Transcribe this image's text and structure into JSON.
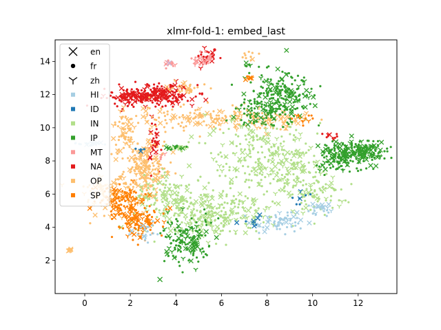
{
  "chart_data": {
    "type": "scatter",
    "title": "xlmr-fold-1: embed_last",
    "xlabel": "",
    "ylabel": "",
    "xlim": [
      -1.3,
      13.7
    ],
    "ylim": [
      0.0,
      15.3
    ],
    "xticks": [
      0,
      2,
      4,
      6,
      8,
      10,
      12
    ],
    "yticks": [
      2,
      4,
      6,
      8,
      10,
      12,
      14
    ],
    "grid": false,
    "legend_placement": "top-left",
    "legend": [
      {
        "label": "en",
        "kind": "marker",
        "marker": "x",
        "color": "#000000"
      },
      {
        "label": "fr",
        "kind": "marker",
        "marker": "o",
        "color": "#000000"
      },
      {
        "label": "zh",
        "kind": "marker",
        "marker": "tri",
        "color": "#000000"
      },
      {
        "label": "HI",
        "kind": "class",
        "color": "#a6cee3"
      },
      {
        "label": "ID",
        "kind": "class",
        "color": "#1f78b4"
      },
      {
        "label": "IN",
        "kind": "class",
        "color": "#b2df8a"
      },
      {
        "label": "IP",
        "kind": "class",
        "color": "#33a02c"
      },
      {
        "label": "MT",
        "kind": "class",
        "color": "#fb9a99"
      },
      {
        "label": "NA",
        "kind": "class",
        "color": "#e31a1c"
      },
      {
        "label": "OP",
        "kind": "class",
        "color": "#fdbf6f"
      },
      {
        "label": "SP",
        "kind": "class",
        "color": "#ff7f00"
      }
    ],
    "series": [
      {
        "name": "NA",
        "color": "#e31a1c",
        "clusters": [
          {
            "cx": 3.3,
            "cy": 12.0,
            "sx": 0.7,
            "sy": 0.3,
            "n": 200
          },
          {
            "cx": 1.8,
            "cy": 11.8,
            "sx": 0.5,
            "sy": 0.3,
            "n": 90
          },
          {
            "cx": 5.3,
            "cy": 14.3,
            "sx": 0.2,
            "sy": 0.25,
            "n": 25
          },
          {
            "cx": 3.0,
            "cy": 9.2,
            "sx": 0.15,
            "sy": 0.7,
            "n": 35
          },
          {
            "cx": 10.8,
            "cy": 9.5,
            "sx": 0.2,
            "sy": 0.1,
            "n": 10
          }
        ]
      },
      {
        "name": "OP",
        "color": "#fdbf6f",
        "clusters": [
          {
            "cx": 2.6,
            "cy": 7.5,
            "sx": 0.5,
            "sy": 0.9,
            "n": 200
          },
          {
            "cx": 1.8,
            "cy": 9.6,
            "sx": 0.3,
            "sy": 0.8,
            "n": 80
          },
          {
            "cx": 5.3,
            "cy": 10.6,
            "sx": 1.6,
            "sy": 0.35,
            "n": 160
          },
          {
            "cx": 8.4,
            "cy": 10.4,
            "sx": 0.8,
            "sy": 0.3,
            "n": 60
          },
          {
            "cx": 1.0,
            "cy": 6.0,
            "sx": 0.6,
            "sy": 0.6,
            "n": 90
          },
          {
            "cx": 4.5,
            "cy": 12.4,
            "sx": 0.5,
            "sy": 0.2,
            "n": 30
          },
          {
            "cx": -0.6,
            "cy": 2.6,
            "sx": 0.05,
            "sy": 0.08,
            "n": 10
          },
          {
            "cx": 7.3,
            "cy": 14.4,
            "sx": 0.3,
            "sy": 0.2,
            "n": 10
          }
        ]
      },
      {
        "name": "IN",
        "color": "#b2df8a",
        "clusters": [
          {
            "cx": 5.5,
            "cy": 4.8,
            "sx": 1.3,
            "sy": 0.7,
            "n": 280
          },
          {
            "cx": 3.8,
            "cy": 6.0,
            "sx": 0.8,
            "sy": 0.6,
            "n": 100
          },
          {
            "cx": 7.6,
            "cy": 8.2,
            "sx": 1.1,
            "sy": 1.2,
            "n": 200
          },
          {
            "cx": 9.2,
            "cy": 7.6,
            "sx": 0.5,
            "sy": 1.0,
            "n": 100
          },
          {
            "cx": 10.2,
            "cy": 6.0,
            "sx": 0.6,
            "sy": 0.6,
            "n": 70
          },
          {
            "cx": 4.2,
            "cy": 8.8,
            "sx": 0.3,
            "sy": 0.1,
            "n": 20
          }
        ]
      },
      {
        "name": "IP",
        "color": "#33a02c",
        "clusters": [
          {
            "cx": 8.6,
            "cy": 11.8,
            "sx": 0.7,
            "sy": 0.8,
            "n": 220
          },
          {
            "cx": 12.0,
            "cy": 8.6,
            "sx": 0.6,
            "sy": 0.35,
            "n": 180
          },
          {
            "cx": 11.2,
            "cy": 8.1,
            "sx": 0.5,
            "sy": 0.4,
            "n": 90
          },
          {
            "cx": 4.5,
            "cy": 3.2,
            "sx": 0.6,
            "sy": 0.7,
            "n": 140
          },
          {
            "cx": 7.4,
            "cy": 11.0,
            "sx": 0.4,
            "sy": 0.5,
            "n": 50
          },
          {
            "cx": 4.0,
            "cy": 8.8,
            "sx": 0.2,
            "sy": 0.05,
            "n": 12
          },
          {
            "cx": 7.1,
            "cy": 13.8,
            "sx": 0.1,
            "sy": 0.1,
            "n": 8
          }
        ]
      },
      {
        "name": "SP",
        "color": "#ff7f00",
        "clusters": [
          {
            "cx": 2.4,
            "cy": 4.4,
            "sx": 0.5,
            "sy": 0.5,
            "n": 120
          },
          {
            "cx": 1.6,
            "cy": 5.6,
            "sx": 0.5,
            "sy": 0.5,
            "n": 90
          },
          {
            "cx": 9.7,
            "cy": 10.6,
            "sx": 0.3,
            "sy": 0.3,
            "n": 12
          },
          {
            "cx": 7.2,
            "cy": 13.0,
            "sx": 0.1,
            "sy": 0.1,
            "n": 6
          }
        ]
      },
      {
        "name": "HI",
        "color": "#a6cee3",
        "clusters": [
          {
            "cx": 8.5,
            "cy": 4.3,
            "sx": 0.7,
            "sy": 0.3,
            "n": 60
          },
          {
            "cx": 10.3,
            "cy": 5.1,
            "sx": 0.3,
            "sy": 0.2,
            "n": 25
          },
          {
            "cx": 0.1,
            "cy": 9.0,
            "sx": 0.4,
            "sy": 0.05,
            "n": 20
          },
          {
            "cx": 2.6,
            "cy": 3.8,
            "sx": 0.3,
            "sy": 0.3,
            "n": 20
          }
        ]
      },
      {
        "name": "MT",
        "color": "#fb9a99",
        "clusters": [
          {
            "cx": 5.2,
            "cy": 14.1,
            "sx": 0.25,
            "sy": 0.2,
            "n": 25
          },
          {
            "cx": 3.7,
            "cy": 13.8,
            "sx": 0.15,
            "sy": 0.1,
            "n": 10
          },
          {
            "cx": 3.3,
            "cy": 8.3,
            "sx": 0.1,
            "sy": 0.1,
            "n": 6
          }
        ]
      },
      {
        "name": "ID",
        "color": "#1f78b4",
        "clusters": [
          {
            "cx": 9.6,
            "cy": 5.8,
            "sx": 0.3,
            "sy": 0.2,
            "n": 8
          },
          {
            "cx": 7.4,
            "cy": 4.3,
            "sx": 0.4,
            "sy": 0.2,
            "n": 8
          },
          {
            "cx": 2.4,
            "cy": 8.7,
            "sx": 0.1,
            "sy": 0.05,
            "n": 4
          }
        ]
      }
    ],
    "accent_points": [
      {
        "x": 3.3,
        "y": 0.85,
        "marker": "x",
        "color": "#33a02c"
      },
      {
        "x": 3.7,
        "y": 13.9,
        "marker": "x",
        "color": "#cab2d6"
      },
      {
        "x": 7.3,
        "y": 13.0,
        "marker": "x",
        "color": "#ff7f00"
      },
      {
        "x": 5.7,
        "y": 14.7,
        "marker": "o",
        "color": "#e31a1c"
      }
    ]
  }
}
